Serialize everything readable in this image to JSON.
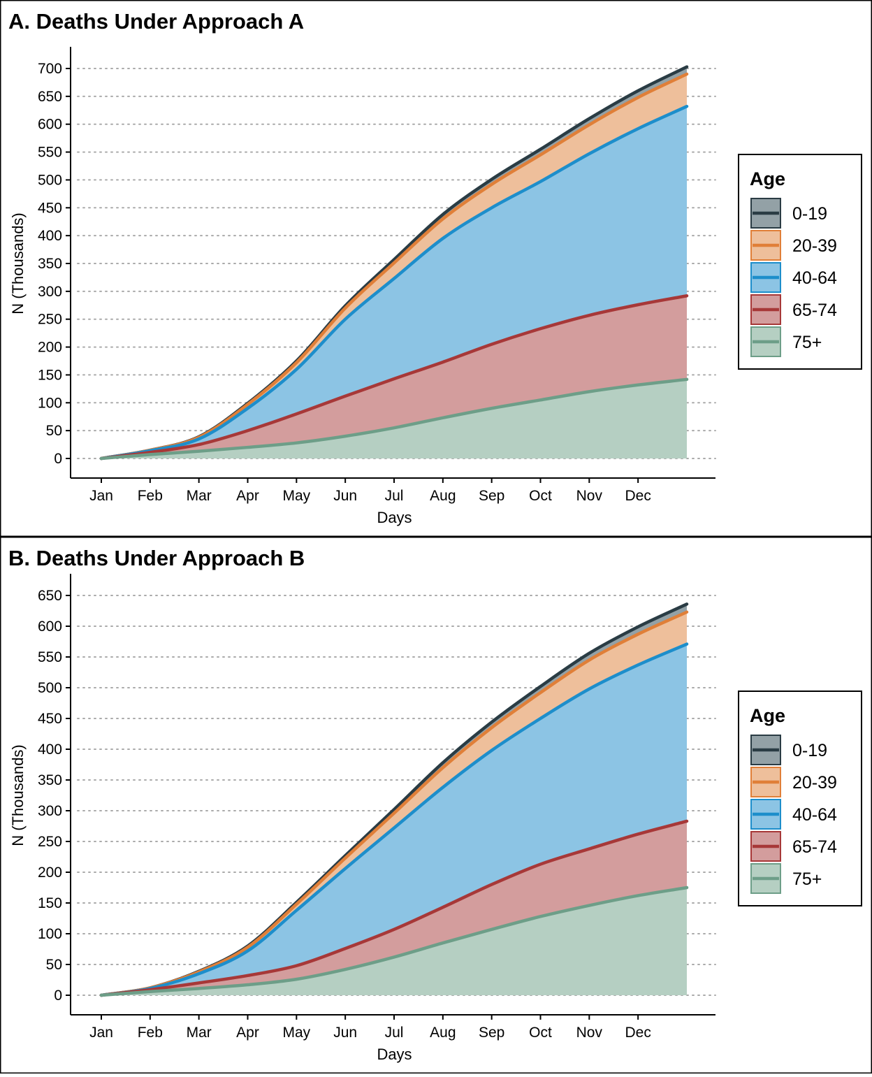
{
  "chart_data": [
    {
      "type": "area",
      "stacked": true,
      "title": "A. Deaths Under Approach A",
      "xlabel": "Days",
      "ylabel": "N (Thousands)",
      "ylim": [
        0,
        700
      ],
      "yticks": [
        0,
        50,
        100,
        150,
        200,
        250,
        300,
        350,
        400,
        450,
        500,
        550,
        600,
        650,
        700
      ],
      "x_tick_labels": [
        "Jan",
        "Feb",
        "Mar",
        "Apr",
        "May",
        "Jun",
        "Jul",
        "Aug",
        "Sep",
        "Oct",
        "Nov",
        "Dec"
      ],
      "x_months": [
        0,
        1,
        2,
        3,
        4,
        5,
        6,
        7,
        8,
        9,
        10,
        11,
        12
      ],
      "grid": "horizontal-dotted",
      "legend": {
        "title": "Age",
        "placement": "right"
      },
      "series": [
        {
          "name": "75+",
          "values": [
            0,
            7,
            13,
            20,
            28,
            40,
            55,
            73,
            90,
            105,
            120,
            132,
            142
          ]
        },
        {
          "name": "65-74",
          "values": [
            0,
            4,
            12,
            30,
            52,
            72,
            88,
            100,
            115,
            128,
            137,
            144,
            150
          ]
        },
        {
          "name": "40-64",
          "values": [
            0,
            3,
            10,
            40,
            80,
            138,
            180,
            222,
            245,
            264,
            290,
            316,
            340
          ]
        },
        {
          "name": "20-39",
          "values": [
            0,
            1,
            3,
            7,
            12,
            20,
            28,
            35,
            42,
            48,
            52,
            56,
            58
          ]
        },
        {
          "name": "0-19",
          "values": [
            0,
            0,
            1,
            2,
            3,
            4,
            6,
            8,
            9,
            10,
            11,
            12,
            13
          ]
        }
      ]
    },
    {
      "type": "area",
      "stacked": true,
      "title": "B. Deaths Under Approach B",
      "xlabel": "Days",
      "ylabel": "N (Thousands)",
      "ylim": [
        0,
        650
      ],
      "yticks": [
        0,
        50,
        100,
        150,
        200,
        250,
        300,
        350,
        400,
        450,
        500,
        550,
        600,
        650
      ],
      "x_tick_labels": [
        "Jan",
        "Feb",
        "Mar",
        "Apr",
        "May",
        "Jun",
        "Jul",
        "Aug",
        "Sep",
        "Oct",
        "Nov",
        "Dec"
      ],
      "x_months": [
        0,
        1,
        2,
        3,
        4,
        5,
        6,
        7,
        8,
        9,
        10,
        11,
        12
      ],
      "grid": "horizontal-dotted",
      "legend": {
        "title": "Age",
        "placement": "right"
      },
      "series": [
        {
          "name": "75+",
          "values": [
            0,
            6,
            11,
            17,
            26,
            42,
            62,
            85,
            107,
            128,
            146,
            162,
            175
          ]
        },
        {
          "name": "65-74",
          "values": [
            0,
            3,
            9,
            15,
            22,
            34,
            45,
            58,
            73,
            85,
            92,
            100,
            108
          ]
        },
        {
          "name": "40-64",
          "values": [
            0,
            2,
            15,
            40,
            90,
            130,
            165,
            195,
            218,
            237,
            260,
            275,
            288
          ]
        },
        {
          "name": "20-39",
          "values": [
            0,
            1,
            3,
            6,
            10,
            17,
            24,
            32,
            37,
            42,
            47,
            50,
            52
          ]
        },
        {
          "name": "0-19",
          "values": [
            0,
            0,
            1,
            2,
            3,
            4,
            6,
            8,
            9,
            10,
            11,
            12,
            13
          ]
        }
      ]
    }
  ],
  "colors": {
    "0-19": {
      "line": "#2a3c44",
      "fill": "#93a1a6"
    },
    "20-39": {
      "line": "#e07f38",
      "fill": "#eebf9b"
    },
    "40-64": {
      "line": "#1d8ecb",
      "fill": "#8cc4e4"
    },
    "65-74": {
      "line": "#a73838",
      "fill": "#d39d9d"
    },
    "75+": {
      "line": "#6d9e88",
      "fill": "#b5cfc2"
    },
    "grid": "#aaaaaa",
    "frame": "#000000"
  }
}
